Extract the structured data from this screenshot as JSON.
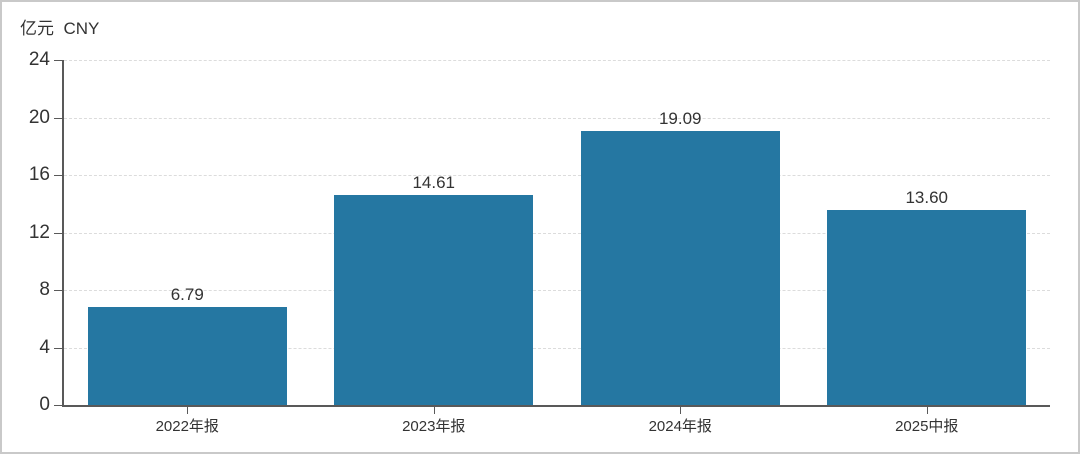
{
  "chart": {
    "unit_label": "亿元  CNY"
  },
  "chart_data": {
    "type": "bar",
    "categories": [
      "2022年报",
      "2023年报",
      "2024年报",
      "2025中报"
    ],
    "values": [
      6.79,
      14.61,
      19.09,
      13.6
    ],
    "value_labels": [
      "6.79",
      "14.61",
      "19.09",
      "13.60"
    ],
    "title": "亿元  CNY",
    "xlabel": "",
    "ylabel": "亿元 CNY",
    "ylim": [
      0,
      24
    ],
    "yticks": [
      0,
      4,
      8,
      12,
      16,
      20,
      24
    ],
    "grid": "horizontal-dashed",
    "legend": "none",
    "bar_color": "#2577A2"
  },
  "colors": {
    "bar": "#2577A2",
    "axis": "#595959",
    "grid": "#dcdcdc",
    "text": "#333333",
    "border": "#c9c9c9",
    "background": "#ffffff"
  }
}
